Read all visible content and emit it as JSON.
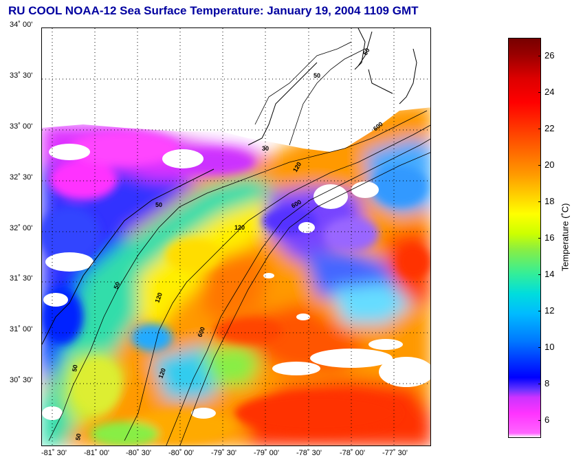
{
  "title": "RU COOL  NOAA-12  Sea Surface Temperature:  January 19, 2004 1109 GMT",
  "map": {
    "y_ticks": [
      "34˚ 00'",
      "33˚ 30'",
      "33˚ 00'",
      "32˚ 30'",
      "32˚ 00'",
      "31˚ 30'",
      "31˚ 00'",
      "30˚ 30'"
    ],
    "x_ticks": [
      "-81˚ 30'",
      "-81˚ 00'",
      "-80˚ 30'",
      "-80˚ 00'",
      "-79˚ 30'",
      "-79˚ 00'",
      "-78˚ 30'",
      "-78˚ 00'",
      "-77˚ 30'"
    ],
    "contour_labels": [
      "50",
      "50",
      "50",
      "50",
      "50",
      "50",
      "120",
      "120",
      "120",
      "120",
      "600",
      "600",
      "600",
      "30"
    ],
    "grid": "dotted"
  },
  "colorbar": {
    "label": "Temperature (˚C)",
    "ticks": [
      "26",
      "24",
      "22",
      "20",
      "18",
      "16",
      "14",
      "12",
      "10",
      "8",
      "6"
    ],
    "range": [
      5,
      27
    ]
  }
}
